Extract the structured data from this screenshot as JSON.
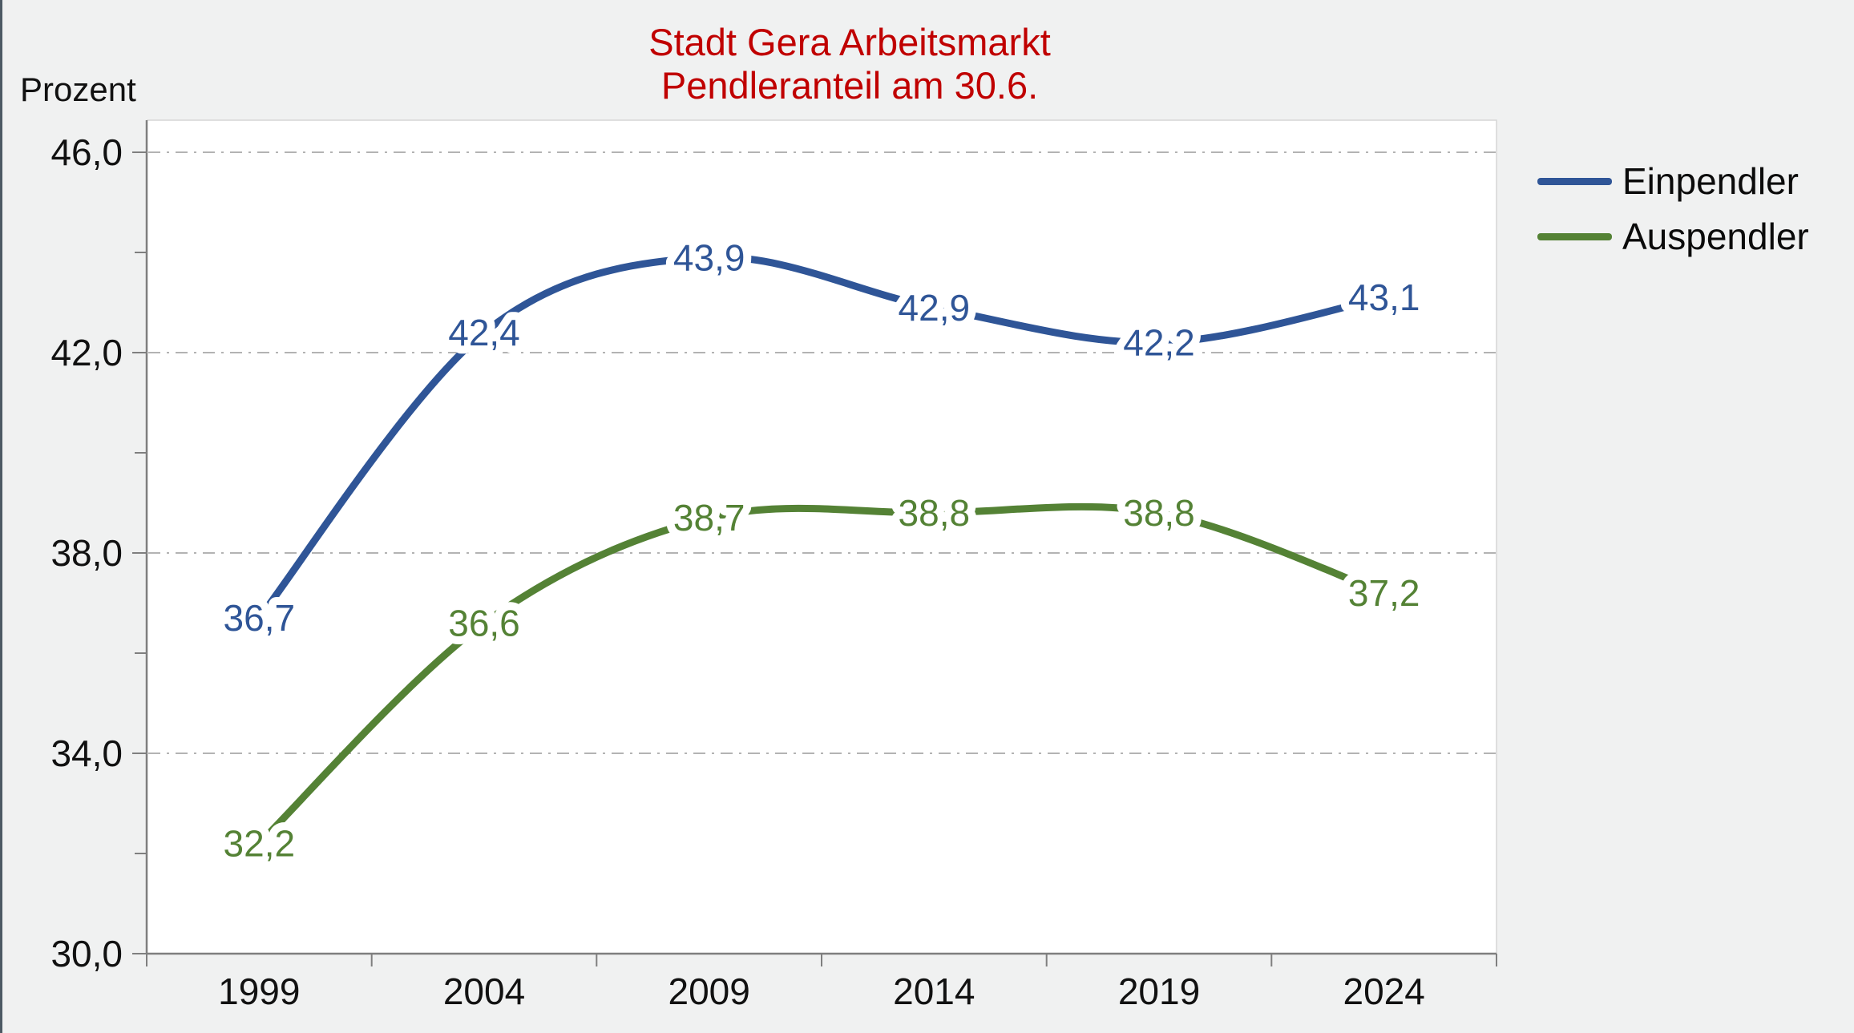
{
  "title": {
    "line1": "Stadt Gera Arbeitsmarkt",
    "line2": "Pendleranteil am 30.6.",
    "color": "#c00000"
  },
  "y_axis_unit_label": "Prozent",
  "legend": {
    "position": "right",
    "items": [
      {
        "label": "Einpendler",
        "color": "#2F5597"
      },
      {
        "label": "Auspendler",
        "color": "#548235"
      }
    ]
  },
  "chart_data": {
    "type": "line",
    "title": "Stadt Gera Arbeitsmarkt — Pendleranteil am 30.6.",
    "categories": [
      "1999",
      "2004",
      "2009",
      "2014",
      "2019",
      "2024"
    ],
    "series": [
      {
        "name": "Einpendler",
        "color": "#2F5597",
        "values": [
          36.7,
          42.4,
          43.9,
          42.9,
          42.2,
          43.1
        ],
        "labels": [
          "36,7",
          "42,4",
          "43,9",
          "42,9",
          "42,2",
          "43,1"
        ]
      },
      {
        "name": "Auspendler",
        "color": "#548235",
        "values": [
          32.2,
          36.6,
          38.7,
          38.8,
          38.8,
          37.2
        ],
        "labels": [
          "32,2",
          "36,6",
          "38,7",
          "38,8",
          "38,8",
          "37,2"
        ]
      }
    ],
    "xlabel": "",
    "ylabel": "Prozent",
    "ylim": [
      30,
      46
    ],
    "y_major_ticks": [
      30,
      34,
      38,
      42,
      46
    ],
    "y_tick_labels": [
      "30,0",
      "34,0",
      "38,0",
      "42,0",
      "46,0"
    ],
    "y_minor_ticks": [
      32,
      36,
      40,
      44
    ],
    "gridlines_at": [
      34,
      38,
      42,
      46
    ],
    "grid_style": "dash-dot",
    "smooth_lines": true,
    "legend_position": "right",
    "colors": {
      "plot_background": "#ffffff",
      "axis_line": "#7f7f7f",
      "gridline": "#b3b3b3",
      "plot_border": "#d6d6d6"
    }
  }
}
